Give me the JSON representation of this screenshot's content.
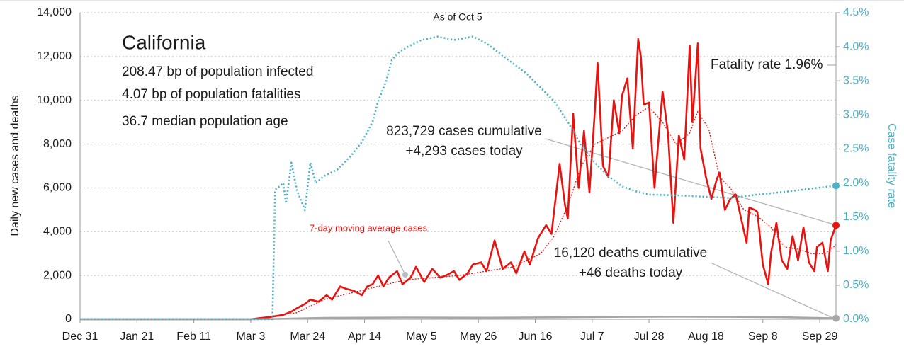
{
  "chart_data": {
    "type": "line",
    "title": "California",
    "subtitle_lines": [
      "208.47 bp of population infected",
      "4.07 bp of population fatalities",
      "36.7 median population age"
    ],
    "annotations": {
      "as_of": "As of Oct 5",
      "fatality": "Fatality rate 1.96%",
      "cases_cum": "823,729 cases cumulative",
      "cases_today": "+4,293 cases today",
      "deaths_cum": "16,120 deaths cumulative",
      "deaths_today": "+46 deaths today"
    },
    "ylabel": "Daily new cases and deaths",
    "y2label": "Case fatality rate",
    "xlim": [
      0,
      279
    ],
    "xticks": [
      {
        "value": 0,
        "label": "Dec 31"
      },
      {
        "value": 21,
        "label": "Jan 21"
      },
      {
        "value": 42,
        "label": "Feb 11"
      },
      {
        "value": 63,
        "label": "Mar 3"
      },
      {
        "value": 84,
        "label": "Mar 24"
      },
      {
        "value": 105,
        "label": "Apr 14"
      },
      {
        "value": 126,
        "label": "May 5"
      },
      {
        "value": 147,
        "label": "May 26"
      },
      {
        "value": 168,
        "label": "Jun 16"
      },
      {
        "value": 189,
        "label": "Jul 7"
      },
      {
        "value": 210,
        "label": "Jul 28"
      },
      {
        "value": 231,
        "label": "Aug 18"
      },
      {
        "value": 252,
        "label": "Sep 8"
      },
      {
        "value": 273,
        "label": "Sep 29"
      }
    ],
    "ylim": [
      0,
      14000
    ],
    "yticks": [
      0,
      {
        "value": 2000,
        "label": "2,000"
      },
      {
        "value": 4000,
        "label": "4,000"
      },
      {
        "value": 6000,
        "label": "6,000"
      },
      {
        "value": 8000,
        "label": "8,000"
      },
      {
        "value": 10000,
        "label": "10,000"
      },
      {
        "value": 12000,
        "label": "12,000"
      },
      {
        "value": 14000,
        "label": "14,000"
      }
    ],
    "y2lim": [
      0,
      4.5
    ],
    "y2ticks": [
      {
        "value": 0,
        "label": "0.0%"
      },
      {
        "value": 0.5,
        "label": "0.5%"
      },
      {
        "value": 1,
        "label": "1.0%"
      },
      {
        "value": 1.5,
        "label": "1.5%"
      },
      {
        "value": 2,
        "label": "2.0%"
      },
      {
        "value": 2.5,
        "label": "2.5%"
      },
      {
        "value": 3,
        "label": "3.0%"
      },
      {
        "value": 3.5,
        "label": "3.5%"
      },
      {
        "value": 4,
        "label": "4.0%"
      },
      {
        "value": 4.5,
        "label": "4.5%"
      }
    ],
    "grid": true,
    "series": [
      {
        "color": "#e8130f",
        "style": "solid",
        "width": 2.6,
        "x": [
          0,
          63,
          66,
          70,
          75,
          78,
          80,
          83,
          85,
          88,
          91,
          93,
          96,
          98,
          101,
          104,
          106,
          108,
          110,
          112,
          114,
          117,
          119,
          122,
          124,
          127,
          130,
          133,
          135,
          138,
          140,
          143,
          145,
          148,
          150,
          153,
          156,
          159,
          161,
          164,
          166,
          169,
          172,
          174,
          177,
          179,
          180,
          182,
          184,
          186,
          188,
          190,
          191,
          193,
          195,
          197,
          199,
          200,
          202,
          204,
          206,
          207,
          208,
          210,
          212,
          213,
          215,
          217,
          219,
          221,
          223,
          225,
          226,
          228,
          229,
          231,
          233,
          235,
          236,
          238,
          240,
          242,
          244,
          246,
          247,
          249,
          250,
          252,
          254,
          255,
          257,
          259,
          261,
          263,
          265,
          267,
          269,
          271,
          272,
          274,
          276,
          277,
          279
        ],
        "values": [
          0,
          0,
          50,
          100,
          200,
          350,
          500,
          700,
          900,
          800,
          1100,
          900,
          1500,
          1400,
          1300,
          1100,
          1500,
          1600,
          2000,
          1500,
          1900,
          2200,
          1600,
          1900,
          2400,
          1700,
          2300,
          1900,
          2000,
          2200,
          1800,
          2100,
          2500,
          2600,
          2200,
          3600,
          2300,
          2600,
          2100,
          3100,
          2500,
          3700,
          4300,
          3900,
          7100,
          5200,
          4600,
          9400,
          6000,
          8600,
          5800,
          9500,
          11700,
          7000,
          6500,
          10000,
          8500,
          10200,
          11000,
          7800,
          12800,
          12000,
          9800,
          9900,
          6000,
          7500,
          10400,
          8500,
          4400,
          8400,
          7300,
          12500,
          9000,
          12600,
          7800,
          6500,
          5500,
          6400,
          6700,
          5000,
          5500,
          5700,
          4600,
          3500,
          5100,
          5000,
          4900,
          2500,
          1600,
          3000,
          4400,
          2700,
          2300,
          3800,
          2700,
          4200,
          2600,
          2200,
          3300,
          3500,
          2200,
          3600,
          4293
        ]
      },
      {
        "name": "7-day moving average cases",
        "color": "#e8130f",
        "style": "dotted",
        "width": 1.3,
        "x": [
          63,
          80,
          90,
          100,
          110,
          120,
          130,
          140,
          150,
          160,
          170,
          175,
          180,
          185,
          190,
          195,
          200,
          205,
          210,
          215,
          220,
          225,
          228,
          232,
          236,
          240,
          245,
          250,
          255,
          260,
          265,
          270,
          275,
          279
        ],
        "values": [
          0,
          300,
          900,
          1200,
          1500,
          1800,
          1900,
          2000,
          2200,
          2400,
          3000,
          3800,
          5200,
          7000,
          8000,
          8300,
          8600,
          9300,
          9700,
          9000,
          8000,
          8500,
          9500,
          8700,
          6500,
          6000,
          5000,
          4700,
          4200,
          3300,
          3200,
          3000,
          3000,
          3400
        ]
      },
      {
        "color": "#a6a6a6",
        "style": "solid",
        "width": 2.6,
        "x": [
          0,
          63,
          70,
          90,
          120,
          150,
          180,
          200,
          220,
          240,
          260,
          279
        ],
        "values": [
          0,
          0,
          10,
          60,
          80,
          70,
          90,
          110,
          120,
          110,
          90,
          46
        ]
      },
      {
        "color": "#4bb0c4",
        "style": "dotted",
        "width": 2.6,
        "axis": "y2",
        "x": [
          0,
          71,
          72,
          75,
          76,
          78,
          80,
          83,
          85,
          87,
          90,
          95,
          100,
          104,
          108,
          110,
          113,
          115,
          117,
          121,
          126,
          132,
          138,
          145,
          150,
          155,
          160,
          165,
          170,
          175,
          180,
          185,
          190,
          195,
          200,
          205,
          210,
          220,
          230,
          240,
          250,
          260,
          270,
          279
        ],
        "values": [
          0,
          0,
          1.9,
          2.0,
          1.7,
          2.3,
          1.9,
          1.6,
          2.3,
          2.0,
          2.1,
          2.2,
          2.4,
          2.6,
          2.9,
          3.2,
          3.5,
          3.8,
          3.9,
          4.0,
          4.1,
          4.15,
          4.1,
          4.15,
          4.05,
          3.9,
          3.75,
          3.6,
          3.4,
          3.2,
          2.9,
          2.55,
          2.3,
          2.1,
          1.95,
          1.88,
          1.83,
          1.82,
          1.8,
          1.78,
          1.83,
          1.87,
          1.92,
          1.96
        ]
      }
    ]
  }
}
